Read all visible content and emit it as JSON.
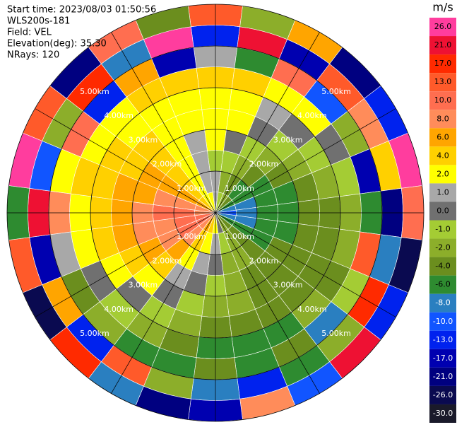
{
  "chart_data": {
    "type": "ppi",
    "header": [
      "Start time: 2023/08/03 01:50:56",
      "WLS200s-181",
      "Field: VEL",
      "Elevation(deg): 35.30",
      "NRays: 120"
    ],
    "colorbar_title": "m/s",
    "levels": [
      {
        "value": 26,
        "label": "26.0"
      },
      {
        "value": 21,
        "label": "21.0"
      },
      {
        "value": 17,
        "label": "17.0"
      },
      {
        "value": 13,
        "label": "13.0"
      },
      {
        "value": 10,
        "label": "10.0"
      },
      {
        "value": 8,
        "label": "8.0"
      },
      {
        "value": 6,
        "label": "6.0"
      },
      {
        "value": 4,
        "label": "4.0"
      },
      {
        "value": 2,
        "label": "2.0"
      },
      {
        "value": 1,
        "label": "1.0"
      },
      {
        "value": 0,
        "label": "0.0"
      },
      {
        "value": -1,
        "label": "-1.0"
      },
      {
        "value": -2,
        "label": "-2.0"
      },
      {
        "value": -4,
        "label": "-4.0"
      },
      {
        "value": -6,
        "label": "-6.0"
      },
      {
        "value": -8,
        "label": "-8.0"
      },
      {
        "value": -10,
        "label": "-10.0"
      },
      {
        "value": -13,
        "label": "-13.0"
      },
      {
        "value": -17,
        "label": "-17.0"
      },
      {
        "value": -21,
        "label": "-21.0"
      },
      {
        "value": -26,
        "label": "-26.0"
      },
      {
        "value": -30,
        "label": "-30.0"
      }
    ],
    "colors": [
      "#ff3d9e",
      "#ee1133",
      "#ff2a00",
      "#ff5a2a",
      "#ff6e50",
      "#ff8c5a",
      "#ffa500",
      "#ffd000",
      "#ffff00",
      "#a8a8a8",
      "#707070",
      "#a4cc34",
      "#8cae2a",
      "#6b8e1e",
      "#2e8b30",
      "#2a7fc0",
      "#1155ff",
      "#0022ee",
      "#0000b0",
      "#000080",
      "#0a0a50",
      "#1a1a2a"
    ],
    "range_rings": [
      {
        "value": 1,
        "label": "1.00km"
      },
      {
        "value": 2,
        "label": "2.00km"
      },
      {
        "value": 3,
        "label": "3.00km"
      },
      {
        "value": 4,
        "label": "4.00km"
      },
      {
        "value": 5,
        "label": "5.00km"
      }
    ],
    "azimuths": [
      0,
      15,
      30,
      45,
      60,
      75,
      90,
      105,
      120,
      135,
      150,
      165,
      180,
      195,
      210,
      225,
      240,
      255,
      270,
      285,
      300,
      315,
      330,
      345
    ],
    "gate_edges": [
      0,
      0.5,
      1,
      1.5,
      2,
      2.5,
      3,
      3.5,
      4,
      4.5,
      5
    ],
    "values": [
      [
        1,
        1,
        -1,
        2,
        3,
        2,
        4,
        1,
        -13,
        13
      ],
      [
        -1,
        -2,
        -1,
        0,
        2,
        3,
        4,
        -6,
        21,
        -2
      ],
      [
        -2,
        -3,
        -2,
        -1,
        0,
        1,
        3,
        10,
        -17,
        6
      ],
      [
        -4,
        -5,
        -3,
        -2,
        -1,
        0,
        2,
        -10,
        13,
        -21
      ],
      [
        -6,
        -6,
        -5,
        -4,
        -2,
        -1,
        0,
        -2,
        8,
        -13
      ],
      [
        -8,
        -8,
        -6,
        -5,
        -4,
        -2,
        -1,
        -17,
        4,
        26
      ],
      [
        -10,
        -8,
        -6,
        -6,
        -4,
        -4,
        -2,
        -6,
        -21,
        10
      ],
      [
        -8,
        -8,
        -6,
        -6,
        -4,
        -4,
        -2,
        13,
        -8,
        -26
      ],
      [
        -6,
        -6,
        -6,
        -4,
        -4,
        -4,
        -4,
        -1,
        17,
        -13
      ],
      [
        -4,
        -4,
        -4,
        -4,
        -4,
        -4,
        -2,
        -8,
        -2,
        21
      ],
      [
        -2,
        -2,
        -2,
        -4,
        -4,
        -4,
        -6,
        -4,
        -6,
        -10
      ],
      [
        0,
        -1,
        -2,
        -2,
        -2,
        -4,
        -6,
        -6,
        -13,
        8
      ],
      [
        2,
        1,
        0,
        -1,
        -2,
        -4,
        -6,
        -4,
        -8,
        -17
      ],
      [
        4,
        2,
        1,
        0,
        -1,
        -2,
        -4,
        -6,
        -2,
        -21
      ],
      [
        6,
        4,
        2,
        1,
        0,
        -1,
        -2,
        -6,
        13,
        -8
      ],
      [
        8,
        8,
        6,
        4,
        2,
        0,
        -1,
        -2,
        -13,
        17
      ],
      [
        10,
        10,
        8,
        6,
        4,
        2,
        0,
        -4,
        6,
        -26
      ],
      [
        10,
        10,
        8,
        8,
        6,
        4,
        2,
        1,
        -17,
        13
      ],
      [
        8,
        10,
        10,
        8,
        6,
        4,
        2,
        8,
        21,
        -6
      ],
      [
        8,
        8,
        8,
        6,
        6,
        4,
        4,
        2,
        -10,
        26
      ],
      [
        6,
        6,
        6,
        6,
        4,
        4,
        2,
        10,
        -2,
        13
      ],
      [
        4,
        4,
        4,
        4,
        4,
        2,
        2,
        -13,
        17,
        -21
      ],
      [
        2,
        2,
        2,
        2,
        2,
        2,
        4,
        6,
        -8,
        10
      ],
      [
        2,
        1,
        1,
        1,
        2,
        2,
        4,
        -17,
        26,
        -4
      ]
    ]
  }
}
